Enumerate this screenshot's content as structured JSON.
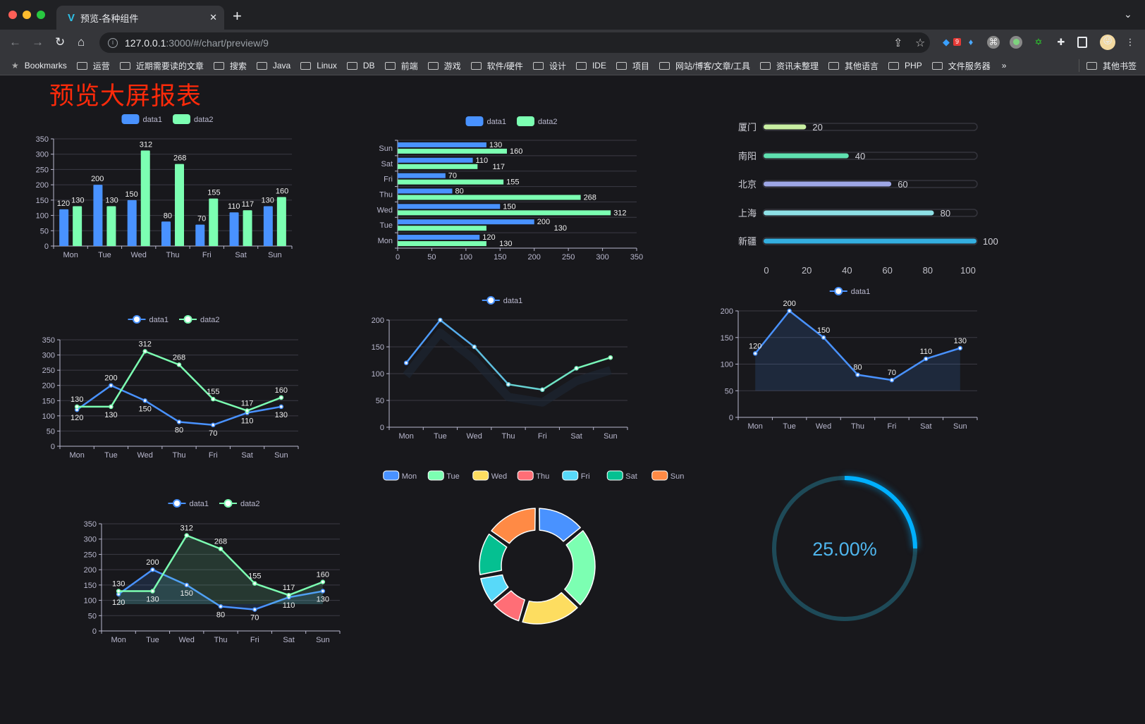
{
  "browser": {
    "tab_title": "预览-各种组件",
    "url_host": "127.0.0.1",
    "url_path": ":3000/#/chart/preview/9",
    "extension_badge": "9",
    "bookmarks_label": "Bookmarks",
    "bookmarks": [
      "运营",
      "近期需要读的文章",
      "搜索",
      "Java",
      "Linux",
      "DB",
      "前端",
      "游戏",
      "软件/硬件",
      "设计",
      "IDE",
      "项目",
      "网站/博客/文章/工具",
      "资讯未整理",
      "其他语言",
      "PHP",
      "文件服务器"
    ],
    "overflow": "»",
    "other_bookmarks": "其他书签"
  },
  "page": {
    "title": "预览大屏报表",
    "background": "#18181c",
    "title_color": "#ff2a0a"
  },
  "colors": {
    "data1": "#4992ff",
    "data2": "#7cffb2"
  },
  "chart_data": [
    {
      "type": "bar",
      "legend": [
        "data1",
        "data2"
      ],
      "categories": [
        "Mon",
        "Tue",
        "Wed",
        "Thu",
        "Fri",
        "Sat",
        "Sun"
      ],
      "series": [
        {
          "name": "data1",
          "values": [
            120,
            200,
            150,
            80,
            70,
            110,
            130
          ]
        },
        {
          "name": "data2",
          "values": [
            130,
            130,
            312,
            268,
            155,
            117,
            160
          ]
        }
      ],
      "ylim": [
        0,
        350
      ],
      "yticks": [
        0,
        50,
        100,
        150,
        200,
        250,
        300,
        350
      ],
      "grid": true,
      "legend_position": "top"
    },
    {
      "type": "bar",
      "orientation": "horizontal",
      "legend": [
        "data1",
        "data2"
      ],
      "categories": [
        "Mon",
        "Tue",
        "Wed",
        "Thu",
        "Fri",
        "Sat",
        "Sun"
      ],
      "series": [
        {
          "name": "data1",
          "values": [
            120,
            200,
            150,
            80,
            70,
            110,
            130
          ]
        },
        {
          "name": "data2",
          "values": [
            130,
            130,
            312,
            268,
            155,
            117,
            160
          ]
        }
      ],
      "xlim": [
        0,
        350
      ],
      "xticks": [
        0,
        50,
        100,
        150,
        200,
        250,
        300,
        350
      ],
      "grid": true,
      "legend_position": "top"
    },
    {
      "type": "bar",
      "orientation": "horizontal",
      "style": "progress",
      "categories": [
        "厦门",
        "南阳",
        "北京",
        "上海",
        "新疆"
      ],
      "values": [
        20,
        40,
        60,
        80,
        100
      ],
      "xlim": [
        0,
        100
      ],
      "xticks": [
        0,
        20,
        40,
        60,
        80,
        100
      ],
      "bar_colors": [
        "#c8eea2",
        "#5fe0b0",
        "#9ea7e6",
        "#8ee0e6",
        "#34afe0"
      ]
    },
    {
      "type": "line",
      "legend": [
        "data1",
        "data2"
      ],
      "categories": [
        "Mon",
        "Tue",
        "Wed",
        "Thu",
        "Fri",
        "Sat",
        "Sun"
      ],
      "series": [
        {
          "name": "data1",
          "values": [
            120,
            200,
            150,
            80,
            70,
            110,
            130
          ]
        },
        {
          "name": "data2",
          "values": [
            130,
            130,
            312,
            268,
            155,
            117,
            160
          ]
        }
      ],
      "ylim": [
        0,
        350
      ],
      "yticks": [
        0,
        50,
        100,
        150,
        200,
        250,
        300,
        350
      ],
      "grid": true,
      "data_labels": true
    },
    {
      "type": "line",
      "legend": [
        "data1"
      ],
      "categories": [
        "Mon",
        "Tue",
        "Wed",
        "Thu",
        "Fri",
        "Sat",
        "Sun"
      ],
      "series": [
        {
          "name": "data1",
          "values": [
            120,
            200,
            150,
            80,
            70,
            110,
            130
          ]
        }
      ],
      "ylim": [
        0,
        200
      ],
      "yticks": [
        0,
        50,
        100,
        150,
        200
      ],
      "grid": true,
      "gradient": [
        "#4992ff",
        "#7cffb2"
      ],
      "data_labels": false
    },
    {
      "type": "area",
      "legend": [
        "data1"
      ],
      "categories": [
        "Mon",
        "Tue",
        "Wed",
        "Thu",
        "Fri",
        "Sat",
        "Sun"
      ],
      "series": [
        {
          "name": "data1",
          "values": [
            120,
            200,
            150,
            80,
            70,
            110,
            130
          ]
        }
      ],
      "ylim": [
        0,
        200
      ],
      "yticks": [
        0,
        50,
        100,
        150,
        200
      ],
      "grid": true,
      "data_labels": true
    },
    {
      "type": "area",
      "legend": [
        "data1",
        "data2"
      ],
      "categories": [
        "Mon",
        "Tue",
        "Wed",
        "Thu",
        "Fri",
        "Sat",
        "Sun"
      ],
      "series": [
        {
          "name": "data1",
          "values": [
            120,
            200,
            150,
            80,
            70,
            110,
            130
          ]
        },
        {
          "name": "data2",
          "values": [
            130,
            130,
            312,
            268,
            155,
            117,
            160
          ]
        }
      ],
      "ylim": [
        0,
        350
      ],
      "yticks": [
        0,
        50,
        100,
        150,
        200,
        250,
        300,
        350
      ],
      "grid": true,
      "data_labels": true
    },
    {
      "type": "pie",
      "style": "donut",
      "categories": [
        "Mon",
        "Tue",
        "Wed",
        "Thu",
        "Fri",
        "Sat",
        "Sun"
      ],
      "values": [
        120,
        200,
        150,
        80,
        70,
        110,
        130
      ],
      "colors": [
        "#4992ff",
        "#7cffb2",
        "#fddd60",
        "#ff6e76",
        "#58d9f9",
        "#05c091",
        "#ff8a45"
      ]
    },
    {
      "type": "gauge",
      "value": 0.25,
      "label": "25.00%",
      "color": "#00b0ff",
      "track_color": "#1e4a58"
    }
  ]
}
